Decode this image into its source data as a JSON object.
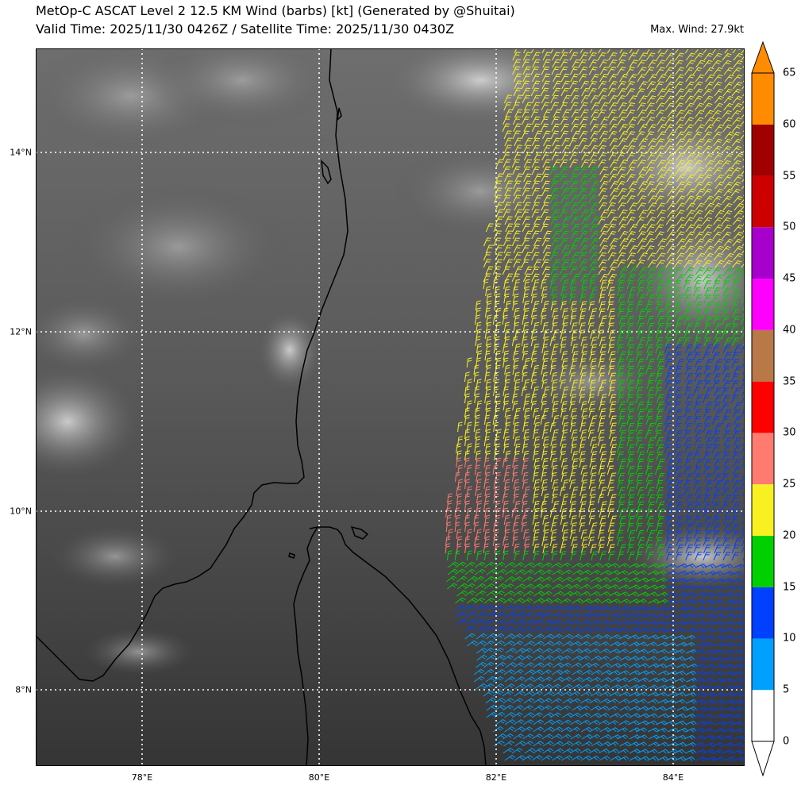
{
  "title_line1": "MetOp-C ASCAT Level 2 12.5 KM Wind (barbs) [kt] (Generated by @Shuitai)",
  "title_line2": "Valid Time: 2025/11/30 0426Z / Satellite Time: 2025/11/30 0430Z",
  "max_wind": "Max. Wind: 27.9kt",
  "x_ticks": [
    "78°E",
    "80°E",
    "82°E",
    "84°E"
  ],
  "y_ticks": [
    "14°N",
    "12°N",
    "10°N",
    "8°N"
  ],
  "colorbar": {
    "labels": [
      "0",
      "5",
      "10",
      "15",
      "20",
      "25",
      "30",
      "35",
      "40",
      "45",
      "50",
      "55",
      "60",
      "65"
    ],
    "colors": [
      "#ffffff",
      "#00a0ff",
      "#0040ff",
      "#00d000",
      "#f8f020",
      "#ff7b70",
      "#ff0000",
      "#b87848",
      "#ff00ff",
      "#a800cc",
      "#cc0000",
      "#a00000",
      "#ff8c00"
    ],
    "extend_low": "#ffffff",
    "extend_high": "#ff8c00"
  }
}
